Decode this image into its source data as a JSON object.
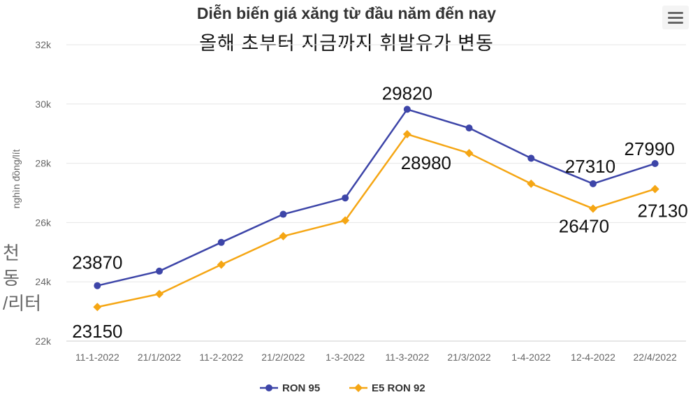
{
  "title": "Diễn biến giá xăng từ đầu năm đến nay",
  "subtitle": "올해 초부터 지금까지 휘발유가 변동",
  "overlay_note_lines": [
    "천",
    "동",
    "/리터"
  ],
  "colors": {
    "ron95": "#3d45a8",
    "e5": "#f5a614",
    "grid": "#e6e6e6",
    "axis_text": "#666666"
  },
  "icons": {
    "menu": "hamburger-icon"
  },
  "chart_data": {
    "type": "line",
    "title": "Diễn biến giá xăng từ đầu năm đến nay",
    "ylabel": "nghìn đồng/lít",
    "xlabel": "",
    "categories": [
      "11-1-2022",
      "21/1/2022",
      "11-2-2022",
      "21/2/2022",
      "1-3-2022",
      "11-3-2022",
      "21/3/2022",
      "1-4-2022",
      "12-4-2022",
      "22/4/2022"
    ],
    "ylim": [
      22000,
      32000
    ],
    "yticks": [
      22000,
      24000,
      26000,
      28000,
      30000,
      32000
    ],
    "ytick_labels": [
      "22k",
      "24k",
      "26k",
      "28k",
      "30k",
      "32k"
    ],
    "grid": true,
    "legend": "bottom-center",
    "series": [
      {
        "name": "RON 95",
        "marker": "circle",
        "values": [
          23870,
          24360,
          25330,
          26280,
          26830,
          29820,
          29190,
          28170,
          27310,
          27990
        ],
        "labels": [
          {
            "index": 0,
            "text": "23870"
          },
          {
            "index": 5,
            "text": "29820"
          },
          {
            "index": 8,
            "text": "27310"
          },
          {
            "index": 9,
            "text": "27990"
          }
        ]
      },
      {
        "name": "E5 RON 92",
        "marker": "diamond",
        "values": [
          23150,
          23590,
          24580,
          25540,
          26070,
          28980,
          28340,
          27310,
          26470,
          27130
        ],
        "labels": [
          {
            "index": 0,
            "text": "23150"
          },
          {
            "index": 5,
            "text": "28980"
          },
          {
            "index": 8,
            "text": "26470"
          },
          {
            "index": 9,
            "text": "27130"
          }
        ]
      }
    ]
  }
}
